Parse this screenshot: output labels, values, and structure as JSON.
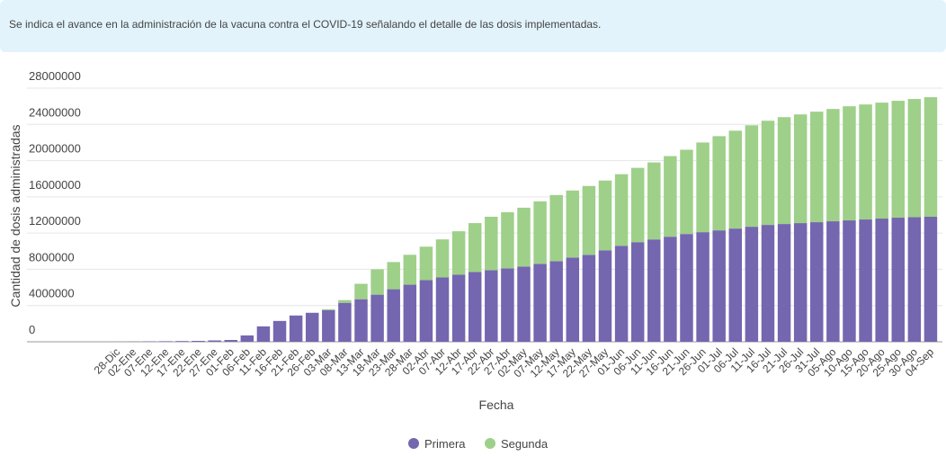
{
  "banner": {
    "text": "Se indica el avance en la administración de la vacuna contra el COVID-19 señalando el detalle de las dosis implementadas."
  },
  "chart_data": {
    "type": "stacked-bar",
    "x_label": "Fecha",
    "y_label": "Cantidad de dosis administradas",
    "categories": [
      "28-Dic",
      "02-Ene",
      "07-Ene",
      "12-Ene",
      "17-Ene",
      "22-Ene",
      "27-Ene",
      "01-Feb",
      "06-Feb",
      "11-Feb",
      "16-Feb",
      "21-Feb",
      "26-Feb",
      "03-Mar",
      "08-Mar",
      "13-Mar",
      "18-Mar",
      "23-Mar",
      "28-Mar",
      "02-Abr",
      "07-Abr",
      "12-Abr",
      "17-Abr",
      "22-Abr",
      "27-Abr",
      "02-May",
      "07-May",
      "12-May",
      "17-May",
      "22-May",
      "27-May",
      "01-Jun",
      "06-Jun",
      "11-Jun",
      "16-Jun",
      "21-Jun",
      "26-Jun",
      "01-Jul",
      "06-Jul",
      "11-Jul",
      "16-Jul",
      "21-Jul",
      "26-Jul",
      "31-Jul",
      "05-Ago",
      "10-Ago",
      "15-Ago",
      "20-Ago",
      "25-Ago",
      "30-Ago",
      "04-Sep"
    ],
    "series": [
      {
        "name": "Primera",
        "color": "#7566b0",
        "values": [
          5000,
          20000,
          40000,
          60000,
          80000,
          100000,
          150000,
          200000,
          700000,
          1700000,
          2300000,
          2900000,
          3200000,
          3500000,
          4300000,
          4700000,
          5200000,
          5800000,
          6300000,
          6800000,
          7100000,
          7400000,
          7700000,
          7900000,
          8100000,
          8300000,
          8600000,
          8900000,
          9300000,
          9600000,
          10100000,
          10600000,
          11000000,
          11300000,
          11600000,
          11900000,
          12100000,
          12300000,
          12500000,
          12700000,
          12900000,
          13000000,
          13100000,
          13200000,
          13300000,
          13400000,
          13500000,
          13600000,
          13700000,
          13750000,
          13800000
        ]
      },
      {
        "name": "Segunda",
        "color": "#9ed089",
        "values": [
          0,
          0,
          0,
          0,
          0,
          0,
          0,
          0,
          0,
          0,
          0,
          0,
          0,
          100000,
          300000,
          1700000,
          2800000,
          3000000,
          3300000,
          3700000,
          4200000,
          4800000,
          5400000,
          5900000,
          6200000,
          6500000,
          6900000,
          7300000,
          7400000,
          7600000,
          7700000,
          7900000,
          8200000,
          8500000,
          8900000,
          9300000,
          9900000,
          10400000,
          10800000,
          11200000,
          11500000,
          11800000,
          12000000,
          12200000,
          12400000,
          12600000,
          12700000,
          12800000,
          12900000,
          13050000,
          13200000
        ]
      }
    ],
    "ylim": [
      0,
      28000000
    ],
    "yticks": [
      0,
      4000000,
      8000000,
      12000000,
      16000000,
      20000000,
      24000000,
      28000000
    ],
    "grid": true,
    "legend": "bottom"
  }
}
